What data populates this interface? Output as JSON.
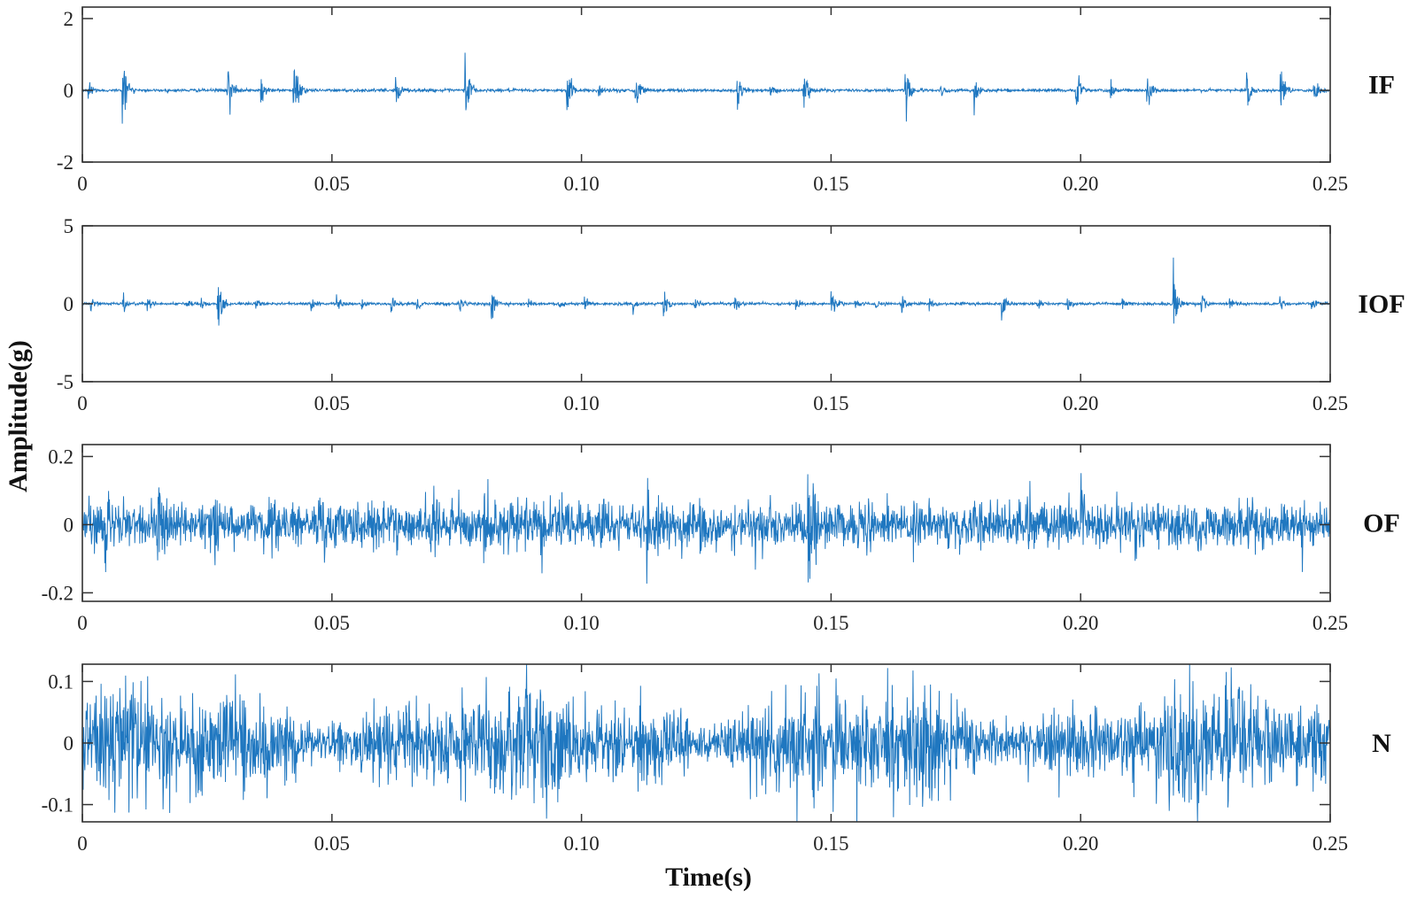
{
  "chart_data": {
    "type": "line",
    "xlabel": "Time(s)",
    "ylabel": "Amplitude(g)",
    "xlim": [
      0,
      0.25
    ],
    "xticks": [
      "0",
      "0.05",
      "0.10",
      "0.15",
      "0.20",
      "0.25"
    ],
    "xtick_values": [
      0,
      0.05,
      0.1,
      0.15,
      0.2,
      0.25
    ],
    "line_color": "#1f77c0",
    "sample_rate_hz": 12000,
    "panels": [
      {
        "label": "IF",
        "ylim": [
          -2,
          2.32
        ],
        "yticks": [
          "-2",
          "0",
          "2"
        ],
        "ytick_values": [
          -2,
          0,
          2
        ],
        "noise_level": 0.04,
        "burst_decay_s": 0.0008,
        "impulse_times": [
          0.0011,
          0.008,
          0.029,
          0.0357,
          0.0422,
          0.0627,
          0.0766,
          0.097,
          0.1034,
          0.1107,
          0.1311,
          0.1377,
          0.1444,
          0.1647,
          0.1719,
          0.1786,
          0.199,
          0.206,
          0.2132,
          0.2332,
          0.24,
          0.2466
        ],
        "impulse_amplitudes": [
          0.75,
          1.8,
          1.6,
          0.8,
          2.3,
          1.0,
          2.2,
          1.5,
          0.4,
          1.3,
          1.3,
          0.3,
          1.2,
          1.5,
          0.4,
          0.8,
          1.2,
          0.4,
          0.9,
          1.1,
          1.4,
          0.7
        ]
      },
      {
        "label": "IOF",
        "ylim": [
          -5,
          5
        ],
        "yticks": [
          "-5",
          "0",
          "5"
        ],
        "ytick_values": [
          -5,
          0,
          5
        ],
        "noise_level": 0.08,
        "burst_decay_s": 0.0008,
        "impulse_times": [
          0.0016,
          0.008,
          0.013,
          0.0207,
          0.0236,
          0.027,
          0.0346,
          0.0457,
          0.0509,
          0.0558,
          0.0618,
          0.067,
          0.0755,
          0.0819,
          0.0891,
          0.0953,
          0.1005,
          0.1103,
          0.1163,
          0.1225,
          0.1306,
          0.1429,
          0.15,
          0.1547,
          0.1589,
          0.1641,
          0.1696,
          0.1841,
          0.1911,
          0.1973,
          0.2082,
          0.2185,
          0.2241,
          0.2297,
          0.2399,
          0.2462
        ],
        "impulse_amplitudes": [
          0.9,
          1.0,
          0.9,
          1.0,
          1.0,
          3.6,
          0.9,
          1.1,
          1.5,
          0.8,
          1.3,
          0.9,
          1.0,
          2.2,
          0.9,
          0.9,
          1.0,
          1.1,
          2.4,
          0.9,
          1.0,
          1.0,
          2.2,
          0.9,
          0.8,
          1.3,
          0.9,
          1.8,
          1.1,
          1.0,
          0.9,
          3.8,
          1.5,
          1.1,
          0.9,
          1.0
        ]
      },
      {
        "label": "OF",
        "ylim": [
          -0.225,
          0.235
        ],
        "yticks": [
          "-0.2",
          "0",
          "0.2"
        ],
        "ytick_values": [
          -0.2,
          0,
          0.2
        ],
        "noise_level": 0.03,
        "burst_decay_s": 0.0022,
        "impulse_times": [
          0.0043,
          0.0149,
          0.0261,
          0.0366,
          0.0475,
          0.0578,
          0.0696,
          0.0804,
          0.0917,
          0.1022,
          0.113,
          0.1236,
          0.1348,
          0.1453,
          0.1553,
          0.1665,
          0.1783,
          0.1893,
          0.2,
          0.2109,
          0.2226,
          0.2332,
          0.2444
        ],
        "impulse_amplitudes": [
          0.13,
          0.2,
          0.13,
          0.15,
          0.2,
          0.12,
          0.14,
          0.19,
          0.13,
          0.12,
          0.22,
          0.15,
          0.13,
          0.23,
          0.16,
          0.17,
          0.15,
          0.14,
          0.18,
          0.13,
          0.14,
          0.12,
          0.11
        ]
      },
      {
        "label": "N",
        "ylim": [
          -0.128,
          0.128
        ],
        "yticks": [
          "-0.1",
          "0",
          "0.1"
        ],
        "ytick_values": [
          -0.1,
          0,
          0.1
        ],
        "noise_level": 0.032,
        "burst_decay_s": 0.002,
        "impulse_times": [],
        "impulse_amplitudes": []
      }
    ]
  }
}
